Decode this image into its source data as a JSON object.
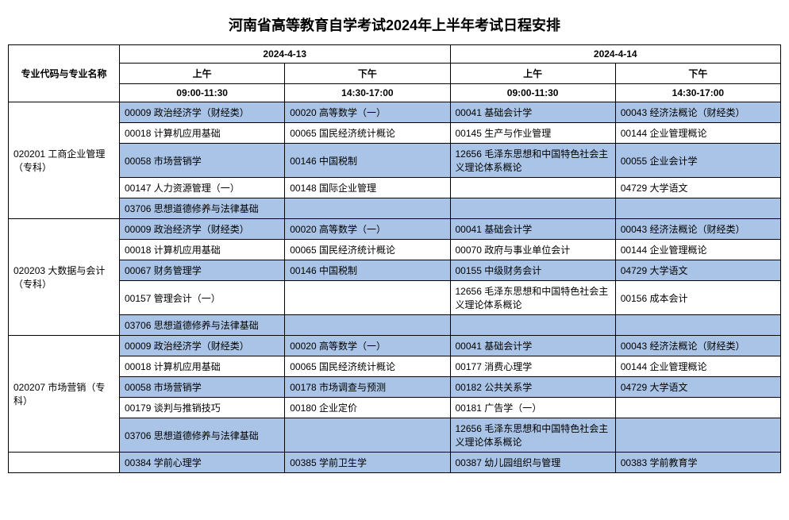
{
  "title": "河南省高等教育自学考试2024年上半年考试日程安排",
  "header": {
    "major_col": "专业代码与专业名称",
    "dates": [
      "2024-4-13",
      "2024-4-14"
    ],
    "sessions": [
      "上午",
      "下午",
      "上午",
      "下午"
    ],
    "times": [
      "09:00-11:30",
      "14:30-17:00",
      "09:00-11:30",
      "14:30-17:00"
    ]
  },
  "colors": {
    "odd_row_bg": "#a9c4e6",
    "even_row_bg": "#ffffff",
    "border": "#000000"
  },
  "majors": [
    {
      "code_name": "020201 工商企业管理（专科）",
      "rowcount": 5,
      "rows": [
        [
          "00009 政治经济学（财经类）",
          "00020 高等数学（一）",
          "00041 基础会计学",
          "00043 经济法概论（财经类）"
        ],
        [
          "00018 计算机应用基础",
          "00065 国民经济统计概论",
          "00145 生产与作业管理",
          "00144 企业管理概论"
        ],
        [
          "00058 市场营销学",
          "00146 中国税制",
          "12656 毛泽东思想和中国特色社会主义理论体系概论",
          "00055 企业会计学"
        ],
        [
          "00147 人力资源管理（一）",
          "00148 国际企业管理",
          "",
          "04729 大学语文"
        ],
        [
          "03706 思想道德修养与法律基础",
          "",
          "",
          ""
        ]
      ]
    },
    {
      "code_name": "020203 大数据与会计（专科）",
      "rowcount": 5,
      "rows": [
        [
          "00009 政治经济学（财经类）",
          "00020 高等数学（一）",
          "00041 基础会计学",
          "00043 经济法概论（财经类）"
        ],
        [
          "00018 计算机应用基础",
          "00065 国民经济统计概论",
          "00070 政府与事业单位会计",
          "00144 企业管理概论"
        ],
        [
          "00067 财务管理学",
          "00146 中国税制",
          "00155 中级财务会计",
          "04729 大学语文"
        ],
        [
          "00157 管理会计（一）",
          "",
          "12656 毛泽东思想和中国特色社会主义理论体系概论",
          "00156 成本会计"
        ],
        [
          "03706 思想道德修养与法律基础",
          "",
          "",
          ""
        ]
      ]
    },
    {
      "code_name": "020207 市场营销（专科）",
      "rowcount": 5,
      "rows": [
        [
          "00009 政治经济学（财经类）",
          "00020 高等数学（一）",
          "00041 基础会计学",
          "00043 经济法概论（财经类）"
        ],
        [
          "00018 计算机应用基础",
          "00065 国民经济统计概论",
          "00177 消费心理学",
          "00144 企业管理概论"
        ],
        [
          "00058 市场营销学",
          "00178 市场调查与预测",
          "00182 公共关系学",
          "04729 大学语文"
        ],
        [
          "00179 谈判与推销技巧",
          "00180 企业定价",
          "00181 广告学（一）",
          ""
        ],
        [
          "03706 思想道德修养与法律基础",
          "",
          "12656 毛泽东思想和中国特色社会主义理论体系概论",
          ""
        ]
      ]
    },
    {
      "code_name": "",
      "rowcount": 1,
      "rows": [
        [
          "00384 学前心理学",
          "00385 学前卫生学",
          "00387 幼儿园组织与管理",
          "00383 学前教育学"
        ]
      ]
    }
  ]
}
